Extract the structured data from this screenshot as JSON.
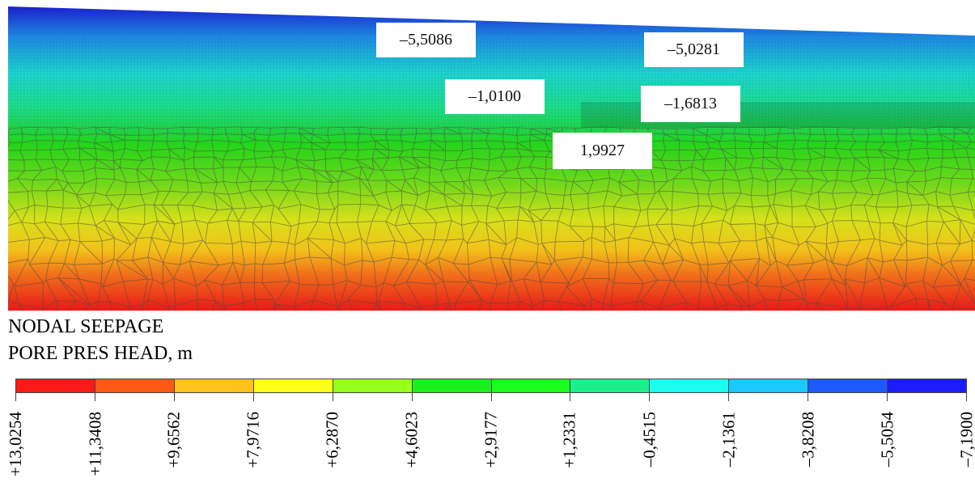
{
  "plot": {
    "value_labels": [
      "–5,5086",
      "–5,0281",
      "–1,0100",
      "–1,6813",
      "1,9927"
    ]
  },
  "legend": {
    "title_line1": "NODAL SEEPAGE",
    "title_line2": "PORE PRES HEAD, m",
    "colors": [
      "#ff1a1a",
      "#ff5a14",
      "#ffc11c",
      "#ffff1c",
      "#96ff1c",
      "#1cf01c",
      "#1cff1c",
      "#1cef8a",
      "#1cffef",
      "#1cc8ff",
      "#1c5aff",
      "#1c1cff"
    ],
    "tick_labels": [
      "+13,0254",
      "+11,3408",
      "+9,6562",
      "+7,9716",
      "+6,2870",
      "+4,6023",
      "+2,9177",
      "+1,2331",
      "–0,4515",
      "–2,1361",
      "–3,8208",
      "–5,5054",
      "–7,1900"
    ]
  }
}
